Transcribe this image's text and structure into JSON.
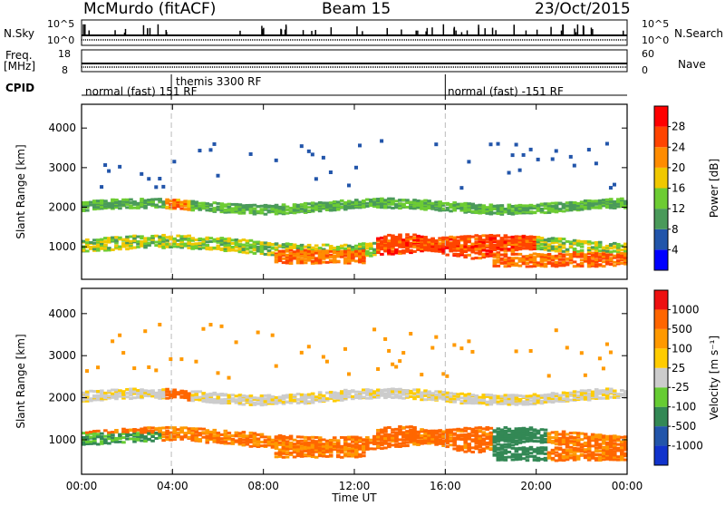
{
  "header": {
    "station": "McMurdo (fitACF)",
    "beam": "Beam 15",
    "date": "23/Oct/2015"
  },
  "top_panels": {
    "nsky_label": "N.Sky",
    "nsky_ticks": [
      "10^5",
      "10^0"
    ],
    "nsearch_label": "N.Search",
    "nsearch_ticks": [
      "10^5",
      "10^0"
    ],
    "freq_label": "Freq.",
    "freq_unit": "[MHz]",
    "freq_ticks": [
      "18",
      "8"
    ],
    "nave_label": "Nave",
    "nave_ticks": [
      "60",
      "0"
    ],
    "cpid_label": "CPID"
  },
  "cpid_segments": [
    {
      "text": "normal (fast) 151 RF",
      "start_hour": 0.0
    },
    {
      "text": "themis 3300 RF",
      "start_hour": 3.95
    },
    {
      "text": "normal (fast) -151 RF",
      "start_hour": 16.0
    }
  ],
  "colors": {
    "power": [
      "#0000ff",
      "#2255aa",
      "#4a9a5a",
      "#6dcc33",
      "#f0c800",
      "#ff8c00",
      "#ff4400",
      "#ff0000"
    ],
    "velocity": [
      "#ee1111",
      "#ff6600",
      "#ff9900",
      "#ffcc00",
      "#cccccc",
      "#66cc33",
      "#338855",
      "#2255aa",
      "#1133cc"
    ]
  },
  "chart_data": [
    {
      "type": "heatmap",
      "ylabel": "Slant Range [km]",
      "xlim": [
        0,
        24
      ],
      "ylim": [
        180,
        4600
      ],
      "yticks": [
        "1000",
        "2000",
        "3000",
        "4000"
      ],
      "colorbar": {
        "label": "Power [dB]",
        "ticks": [
          "4",
          "8",
          "12",
          "16",
          "20",
          "24",
          "28"
        ],
        "range": [
          0,
          32
        ]
      },
      "description_bands": [
        {
          "t0": 0.0,
          "t1": 3.5,
          "range_km": 1100,
          "level": 12
        },
        {
          "t0": 3.7,
          "t1": 4.8,
          "range_km": 2100,
          "level": 22
        },
        {
          "t0": 4.0,
          "t1": 10.0,
          "range_km": 1000,
          "level": 12
        },
        {
          "t0": 8.5,
          "t1": 12.0,
          "range_km": 800,
          "level": 24
        },
        {
          "t0": 13.0,
          "t1": 20.0,
          "range_km": 1000,
          "level": 26
        },
        {
          "t0": 18.0,
          "t1": 24.0,
          "range_km": 700,
          "level": 24
        },
        {
          "t0": 0.0,
          "t1": 24.0,
          "range_km": 2100,
          "level": 10
        }
      ]
    },
    {
      "type": "heatmap",
      "xlabel": "Time UT",
      "ylabel": "Slant Range [km]",
      "xlim": [
        0,
        24
      ],
      "ylim": [
        180,
        4600
      ],
      "xticks": [
        "00:00",
        "04:00",
        "08:00",
        "12:00",
        "16:00",
        "20:00",
        "00:00"
      ],
      "yticks": [
        "1000",
        "2000",
        "3000",
        "4000"
      ],
      "colorbar": {
        "label": "Velocity [m s⁻¹]",
        "ticks": [
          "1000",
          "500",
          "100",
          "25",
          "-25",
          "-100",
          "-500",
          "-1000"
        ]
      }
    }
  ]
}
